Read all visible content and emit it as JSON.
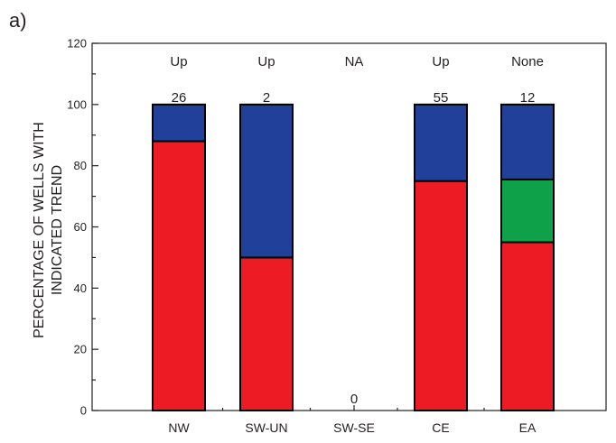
{
  "panel_label": "a)",
  "chart_data": {
    "type": "bar",
    "stacked": true,
    "categories": [
      "NW",
      "SW-UN",
      "SW-SE",
      "CE",
      "EA"
    ],
    "counts": [
      "26",
      "2",
      "0",
      "55",
      "12"
    ],
    "trends": [
      "Up",
      "Up",
      "NA",
      "Up",
      "None"
    ],
    "series": [
      {
        "values": [
          88,
          50,
          0,
          75,
          55
        ],
        "color": "#ed1c24"
      },
      {
        "values": [
          0,
          0,
          0,
          0,
          20.5
        ],
        "color": "#0fa14a"
      },
      {
        "values": [
          12,
          50,
          0,
          25,
          24.5
        ],
        "color": "#21409a"
      }
    ],
    "ylabel": "PERCENTAGE OF WELLS WITH INDICATED TREND",
    "ylabel_lines": [
      "PERCENTAGE OF WELLS WITH",
      "INDICATED TREND"
    ],
    "xlabel": "",
    "ylim": [
      0,
      120
    ],
    "yticks": [
      0,
      20,
      40,
      60,
      80,
      100,
      120
    ],
    "grid": false,
    "legend": "none"
  }
}
